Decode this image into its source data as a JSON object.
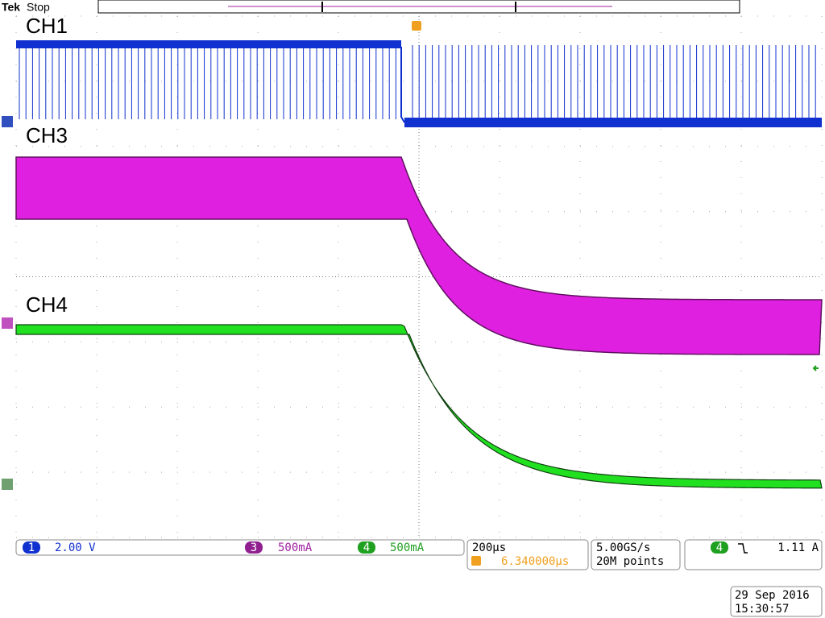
{
  "header": {
    "brand": "Tek",
    "status": "Stop"
  },
  "channels": {
    "ch1": "CH1",
    "ch3": "CH3",
    "ch4": "CH4"
  },
  "readout": {
    "ch1_num": "1",
    "ch1_scale": "2.00 V",
    "ch3_num": "3",
    "ch3_scale": "500mA",
    "ch4_num": "4",
    "ch4_scale": "500mA",
    "timebase": "200µs",
    "trigger_pos": "6.340000µs",
    "sample_rate": "5.00GS/s",
    "record": "20M points",
    "trig_source": "4",
    "trig_level": "1.11 A"
  },
  "datetime": {
    "date": "29 Sep  2016",
    "time": "15:30:57"
  }
}
